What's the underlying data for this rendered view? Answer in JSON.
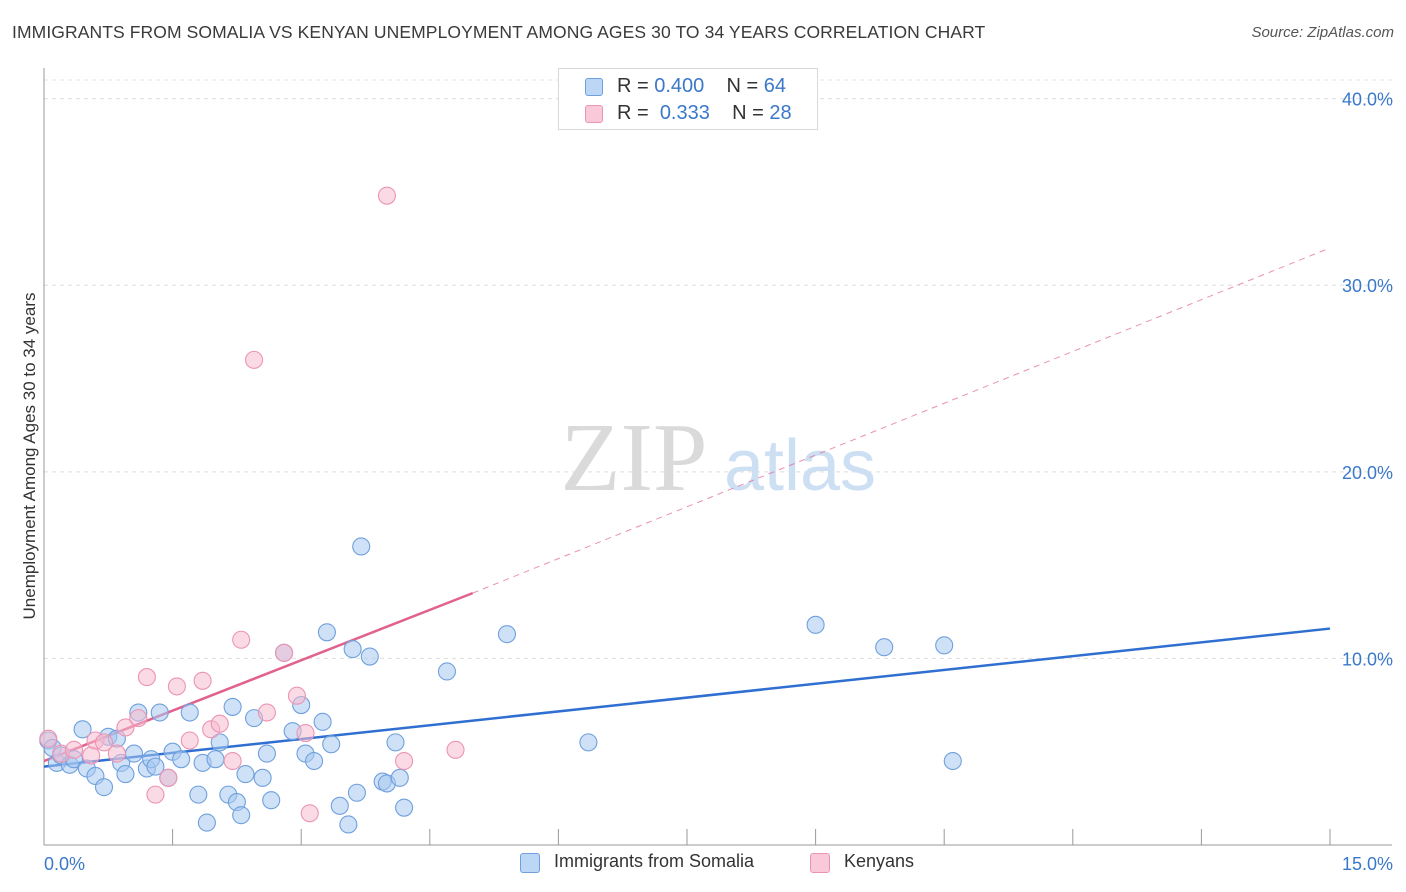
{
  "title": "IMMIGRANTS FROM SOMALIA VS KENYAN UNEMPLOYMENT AMONG AGES 30 TO 34 YEARS CORRELATION CHART",
  "source": "Source: ZipAtlas.com",
  "watermark": {
    "zip": "ZIP",
    "atlas": "atlas"
  },
  "legend_top": [
    {
      "r_label": "R =",
      "r_value": "0.400",
      "n_label": "N =",
      "n_value": "64"
    },
    {
      "r_label": "R =",
      "r_value": "0.333",
      "n_label": "N =",
      "n_value": "28"
    }
  ],
  "chart_data": {
    "type": "scatter",
    "title": "IMMIGRANTS FROM SOMALIA VS KENYAN UNEMPLOYMENT AMONG AGES 30 TO 34 YEARS CORRELATION CHART",
    "xlabel": "",
    "ylabel": "Unemployment Among Ages 30 to 34 years",
    "xlim": [
      0,
      15
    ],
    "ylim": [
      0,
      41
    ],
    "x_tick_labels": [
      "0.0%",
      "15.0%"
    ],
    "y_ticks": [
      10,
      20,
      30,
      40
    ],
    "y_tick_labels": [
      "10.0%",
      "20.0%",
      "30.0%",
      "40.0%"
    ],
    "grid": true,
    "legend_position": "bottom-center",
    "series": [
      {
        "name": "Immigrants from Somalia",
        "color": "#a8c8f0",
        "edge_color": "#6fa0dd",
        "line_color": "#2f6fd1",
        "r": 0.4,
        "n": 64,
        "trend": {
          "x0": 0.0,
          "y0": 4.2,
          "x1": 15.0,
          "y1": 11.6,
          "dashed_extension": false
        },
        "points": [
          [
            0.05,
            5.6
          ],
          [
            0.1,
            5.2
          ],
          [
            0.15,
            4.4
          ],
          [
            0.2,
            4.8
          ],
          [
            0.3,
            4.3
          ],
          [
            0.35,
            4.6
          ],
          [
            0.45,
            6.2
          ],
          [
            0.5,
            4.1
          ],
          [
            0.6,
            3.7
          ],
          [
            0.7,
            3.1
          ],
          [
            0.75,
            5.8
          ],
          [
            0.85,
            5.7
          ],
          [
            0.9,
            4.4
          ],
          [
            0.95,
            3.8
          ],
          [
            1.05,
            4.9
          ],
          [
            1.1,
            7.1
          ],
          [
            1.2,
            4.1
          ],
          [
            1.25,
            4.6
          ],
          [
            1.3,
            4.2
          ],
          [
            1.35,
            7.1
          ],
          [
            1.45,
            3.6
          ],
          [
            1.5,
            5.0
          ],
          [
            1.6,
            4.6
          ],
          [
            1.7,
            7.1
          ],
          [
            1.8,
            2.7
          ],
          [
            1.85,
            4.4
          ],
          [
            1.9,
            1.2
          ],
          [
            2.0,
            4.6
          ],
          [
            2.05,
            5.5
          ],
          [
            2.15,
            2.7
          ],
          [
            2.2,
            7.4
          ],
          [
            2.25,
            2.3
          ],
          [
            2.3,
            1.6
          ],
          [
            2.35,
            3.8
          ],
          [
            2.45,
            6.8
          ],
          [
            2.55,
            3.6
          ],
          [
            2.6,
            4.9
          ],
          [
            2.65,
            2.4
          ],
          [
            2.8,
            10.3
          ],
          [
            2.9,
            6.1
          ],
          [
            3.0,
            7.5
          ],
          [
            3.05,
            4.9
          ],
          [
            3.15,
            4.5
          ],
          [
            3.25,
            6.6
          ],
          [
            3.3,
            11.4
          ],
          [
            3.35,
            5.4
          ],
          [
            3.45,
            2.1
          ],
          [
            3.55,
            1.1
          ],
          [
            3.6,
            10.5
          ],
          [
            3.65,
            2.8
          ],
          [
            3.7,
            16.0
          ],
          [
            3.8,
            10.1
          ],
          [
            3.95,
            3.4
          ],
          [
            4.0,
            3.3
          ],
          [
            4.1,
            5.5
          ],
          [
            4.15,
            3.6
          ],
          [
            4.2,
            2.0
          ],
          [
            4.7,
            9.3
          ],
          [
            5.4,
            11.3
          ],
          [
            6.35,
            5.5
          ],
          [
            9.0,
            11.8
          ],
          [
            9.8,
            10.6
          ],
          [
            10.5,
            10.7
          ],
          [
            10.6,
            4.5
          ]
        ]
      },
      {
        "name": "Kenyans",
        "color": "#f6bcd0",
        "edge_color": "#ec94b3",
        "line_color": "#e2628f",
        "r": 0.333,
        "n": 28,
        "trend": {
          "x0": 0.0,
          "y0": 4.5,
          "x1": 5.0,
          "y1": 13.5,
          "dashed_to_x": 15.0,
          "dashed_to_y": 32.0
        },
        "points": [
          [
            0.05,
            5.7
          ],
          [
            0.2,
            4.9
          ],
          [
            0.35,
            5.1
          ],
          [
            0.55,
            4.8
          ],
          [
            0.6,
            5.6
          ],
          [
            0.7,
            5.5
          ],
          [
            0.85,
            4.9
          ],
          [
            0.95,
            6.3
          ],
          [
            1.1,
            6.8
          ],
          [
            1.2,
            9.0
          ],
          [
            1.3,
            2.7
          ],
          [
            1.45,
            3.6
          ],
          [
            1.55,
            8.5
          ],
          [
            1.7,
            5.6
          ],
          [
            1.85,
            8.8
          ],
          [
            1.95,
            6.2
          ],
          [
            2.05,
            6.5
          ],
          [
            2.2,
            4.5
          ],
          [
            2.3,
            11.0
          ],
          [
            2.45,
            26.0
          ],
          [
            2.6,
            7.1
          ],
          [
            2.8,
            10.3
          ],
          [
            2.95,
            8.0
          ],
          [
            3.05,
            6.0
          ],
          [
            3.1,
            1.7
          ],
          [
            4.0,
            34.8
          ],
          [
            4.2,
            4.5
          ],
          [
            4.8,
            5.1
          ]
        ]
      }
    ]
  }
}
